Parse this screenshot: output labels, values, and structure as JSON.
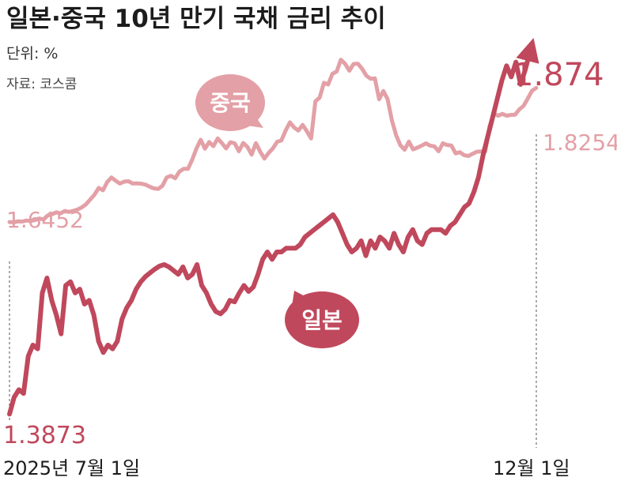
{
  "title": "일본·중국 10년 만기 국채 금리 추이",
  "unit": "단위: %",
  "source": "자료: 코스콤",
  "colors": {
    "china": "#e3a0a6",
    "japan": "#c0485c",
    "text": "#1c1c1c"
  },
  "chart_data": {
    "type": "line",
    "title": "일본·중국 10년 만기 국채 금리 추이",
    "x_start_label": "2025년 7월 1일",
    "x_end_label": "12월 1일",
    "ylim": [
      1.36,
      1.92
    ],
    "grid": false,
    "series": [
      {
        "name": "중국",
        "start_label": "1.6452",
        "end_label": "1.8254",
        "values": [
          1.6452,
          1.6448,
          1.6462,
          1.6458,
          1.6472,
          1.6466,
          1.6478,
          1.65,
          1.6486,
          1.654,
          1.6556,
          1.6582,
          1.6568,
          1.66,
          1.6588,
          1.6602,
          1.662,
          1.6648,
          1.669,
          1.6754,
          1.6818,
          1.691,
          1.6878,
          1.6988,
          1.705,
          1.7006,
          1.6968,
          1.6994,
          1.7,
          1.6968,
          1.6972,
          1.6966,
          1.6954,
          1.6926,
          1.6904,
          1.6896,
          1.694,
          1.705,
          1.7072,
          1.704,
          1.713,
          1.7166,
          1.7166,
          1.729,
          1.7438,
          1.7556,
          1.7436,
          1.7526,
          1.747,
          1.7574,
          1.7512,
          1.744,
          1.7524,
          1.7508,
          1.7402,
          1.7514,
          1.746,
          1.7358,
          1.751,
          1.7398,
          1.7304,
          1.738,
          1.744,
          1.753,
          1.7546,
          1.768,
          1.779,
          1.772,
          1.768,
          1.7756,
          1.767,
          1.7574,
          1.8072,
          1.8122,
          1.8322,
          1.8298,
          1.8442,
          1.8472,
          1.8632,
          1.8576,
          1.8484,
          1.8574,
          1.8578,
          1.851,
          1.8416,
          1.8376,
          1.838,
          1.81,
          1.8212,
          1.8102,
          1.7818,
          1.7616,
          1.7484,
          1.7422,
          1.7532,
          1.7428,
          1.745,
          1.7478,
          1.7508,
          1.7478,
          1.7468,
          1.7402,
          1.7508,
          1.7486,
          1.748,
          1.7374,
          1.739,
          1.735,
          1.7338,
          1.7368,
          1.7396,
          1.74,
          1.74,
          1.7736,
          1.791,
          1.7878,
          1.7904,
          1.788,
          1.789,
          1.7892,
          1.7964,
          1.8012,
          1.8112,
          1.8216,
          1.8254
        ]
      },
      {
        "name": "일본",
        "start_label": "1.3873",
        "end_label": "1.874",
        "values": [
          1.3873,
          1.41,
          1.42,
          1.415,
          1.465,
          1.48,
          1.475,
          1.55,
          1.57,
          1.54,
          1.52,
          1.495,
          1.56,
          1.565,
          1.55,
          1.555,
          1.535,
          1.54,
          1.52,
          1.485,
          1.47,
          1.48,
          1.475,
          1.485,
          1.515,
          1.53,
          1.54,
          1.555,
          1.565,
          1.572,
          1.577,
          1.582,
          1.586,
          1.588,
          1.585,
          1.58,
          1.575,
          1.585,
          1.57,
          1.575,
          1.588,
          1.56,
          1.55,
          1.535,
          1.525,
          1.522,
          1.528,
          1.54,
          1.538,
          1.55,
          1.56,
          1.552,
          1.558,
          1.575,
          1.595,
          1.605,
          1.595,
          1.605,
          1.605,
          1.61,
          1.61,
          1.61,
          1.615,
          1.625,
          1.63,
          1.635,
          1.64,
          1.645,
          1.65,
          1.655,
          1.645,
          1.63,
          1.615,
          1.605,
          1.61,
          1.62,
          1.6,
          1.62,
          1.61,
          1.625,
          1.62,
          1.61,
          1.63,
          1.615,
          1.605,
          1.625,
          1.635,
          1.62,
          1.615,
          1.63,
          1.635,
          1.635,
          1.635,
          1.63,
          1.64,
          1.645,
          1.655,
          1.665,
          1.67,
          1.685,
          1.705,
          1.735,
          1.76,
          1.785,
          1.81,
          1.835,
          1.855,
          1.84,
          1.86,
          1.83,
          1.85,
          1.874
        ]
      }
    ]
  }
}
